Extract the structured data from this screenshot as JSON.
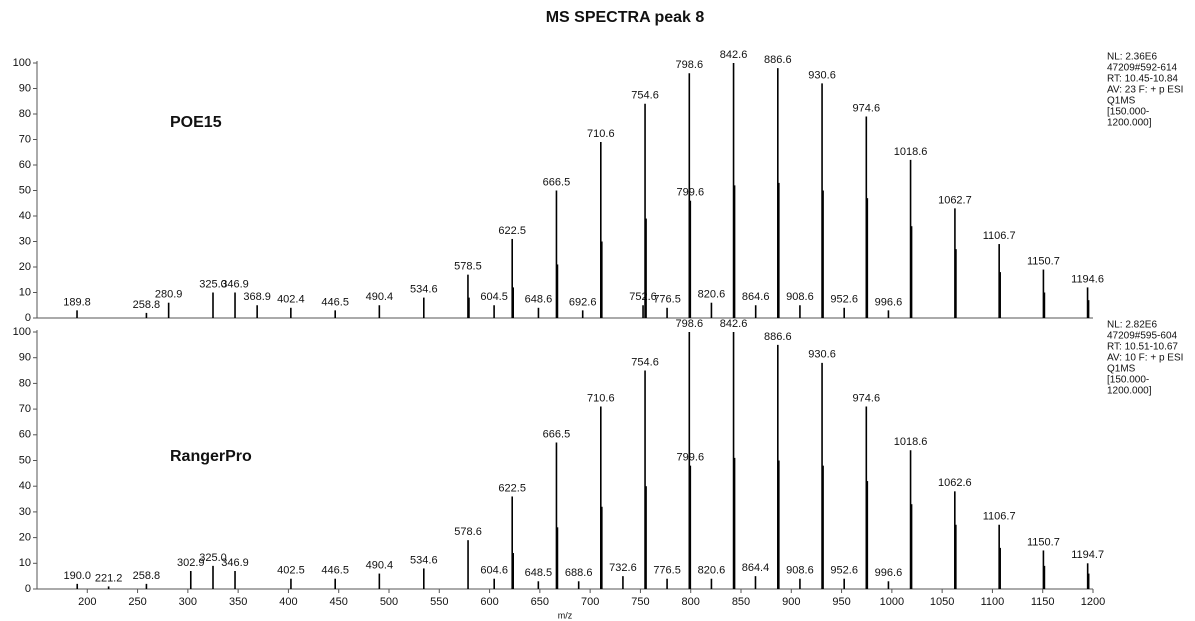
{
  "chart_data": [
    {
      "type": "spectrum",
      "title": "MS SPECTRA peak 8",
      "name": "POE15",
      "info": [
        "NL: 2.36E6",
        "47209#592-614",
        "RT: 10.45-10.84",
        "AV: 23 F: + p ESI",
        "Q1MS",
        "[150.000-",
        "1200.000]"
      ],
      "xlim": [
        150,
        1200
      ],
      "ylim": [
        0,
        100
      ],
      "yticks": [
        0,
        10,
        20,
        30,
        40,
        50,
        60,
        70,
        80,
        90,
        100
      ],
      "color": "#000000",
      "x": [
        189.8,
        258.8,
        280.9,
        325.0,
        346.9,
        368.9,
        402.4,
        446.5,
        490.4,
        534.6,
        578.5,
        579.5,
        604.5,
        622.5,
        623.5,
        648.6,
        666.5,
        667.5,
        692.6,
        710.6,
        711.6,
        752.6,
        754.6,
        755.6,
        776.5,
        798.6,
        799.6,
        820.6,
        842.6,
        843.6,
        864.6,
        886.6,
        887.6,
        908.6,
        930.6,
        931.6,
        952.6,
        974.6,
        975.6,
        996.6,
        1018.6,
        1019.6,
        1062.7,
        1063.7,
        1106.7,
        1107.7,
        1150.7,
        1151.7,
        1194.6,
        1195.6
      ],
      "values": [
        3,
        2,
        6,
        10,
        10,
        5,
        4,
        3,
        5,
        8,
        17,
        8,
        5,
        31,
        12,
        4,
        50,
        21,
        3,
        69,
        30,
        5,
        84,
        39,
        4,
        96,
        46,
        6,
        100,
        52,
        5,
        98,
        53,
        5,
        92,
        50,
        4,
        79,
        47,
        3,
        62,
        36,
        43,
        27,
        29,
        18,
        19,
        10,
        12,
        7
      ],
      "labels": [
        "189.8",
        "258.8",
        "280.9",
        "325.0",
        "346.9",
        "368.9",
        "402.4",
        "446.5",
        "490.4",
        "534.6",
        "578.5",
        null,
        "604.5",
        "622.5",
        null,
        "648.6",
        "666.5",
        null,
        "692.6",
        "710.6",
        null,
        "752.6",
        "754.6",
        null,
        "776.5",
        "798.6",
        "799.6",
        "820.6",
        "842.6",
        null,
        "864.6",
        "886.6",
        null,
        "908.6",
        "930.6",
        null,
        "952.6",
        "974.6",
        null,
        "996.6",
        "1018.6",
        null,
        "1062.7",
        null,
        "1106.7",
        null,
        "1150.7",
        null,
        "1194.6",
        null
      ]
    },
    {
      "type": "spectrum",
      "name": "RangerPro",
      "info": [
        "NL: 2.82E6",
        "47209#595-604",
        "RT: 10.51-10.67",
        "AV: 10 F: + p ESI",
        "Q1MS",
        "[150.000-",
        "1200.000]"
      ],
      "xlim": [
        150,
        1200
      ],
      "xticks": [
        200,
        250,
        300,
        350,
        400,
        450,
        500,
        550,
        600,
        650,
        700,
        750,
        800,
        850,
        900,
        950,
        1000,
        1050,
        1100,
        1150,
        1200
      ],
      "xlabel": "m/z",
      "ylim": [
        0,
        100
      ],
      "yticks": [
        0,
        10,
        20,
        30,
        40,
        50,
        60,
        70,
        80,
        90,
        100
      ],
      "color": "#000000",
      "x": [
        190.0,
        221.2,
        258.8,
        302.9,
        325.0,
        346.9,
        402.5,
        446.5,
        490.4,
        534.6,
        578.6,
        604.6,
        622.5,
        623.5,
        648.5,
        666.5,
        667.5,
        688.6,
        710.6,
        711.6,
        732.6,
        754.6,
        755.6,
        776.5,
        798.6,
        799.6,
        820.6,
        842.6,
        843.6,
        864.4,
        886.6,
        887.6,
        908.6,
        930.6,
        931.6,
        952.6,
        974.6,
        975.6,
        996.6,
        1018.6,
        1019.6,
        1062.6,
        1063.6,
        1106.7,
        1107.7,
        1150.7,
        1151.7,
        1194.7,
        1195.7
      ],
      "values": [
        2,
        1,
        2,
        7,
        9,
        7,
        4,
        4,
        6,
        8,
        19,
        4,
        36,
        14,
        3,
        57,
        24,
        3,
        71,
        32,
        5,
        85,
        40,
        4,
        100,
        48,
        4,
        100,
        51,
        5,
        95,
        50,
        4,
        88,
        48,
        4,
        71,
        42,
        3,
        54,
        33,
        38,
        25,
        25,
        16,
        15,
        9,
        10,
        6
      ],
      "labels": [
        "190.0",
        "221.2",
        "258.8",
        "302.9",
        "325.0",
        "346.9",
        "402.5",
        "446.5",
        "490.4",
        "534.6",
        "578.6",
        "604.6",
        "622.5",
        null,
        "648.5",
        "666.5",
        null,
        "688.6",
        "710.6",
        null,
        "732.6",
        "754.6",
        null,
        "776.5",
        "798.6",
        "799.6",
        "820.6",
        "842.6",
        null,
        "864.4",
        "886.6",
        null,
        "908.6",
        "930.6",
        null,
        "952.6",
        "974.6",
        null,
        "996.6",
        "1018.6",
        null,
        "1062.6",
        null,
        "1106.7",
        null,
        "1150.7",
        null,
        "1194.7",
        null
      ]
    }
  ]
}
